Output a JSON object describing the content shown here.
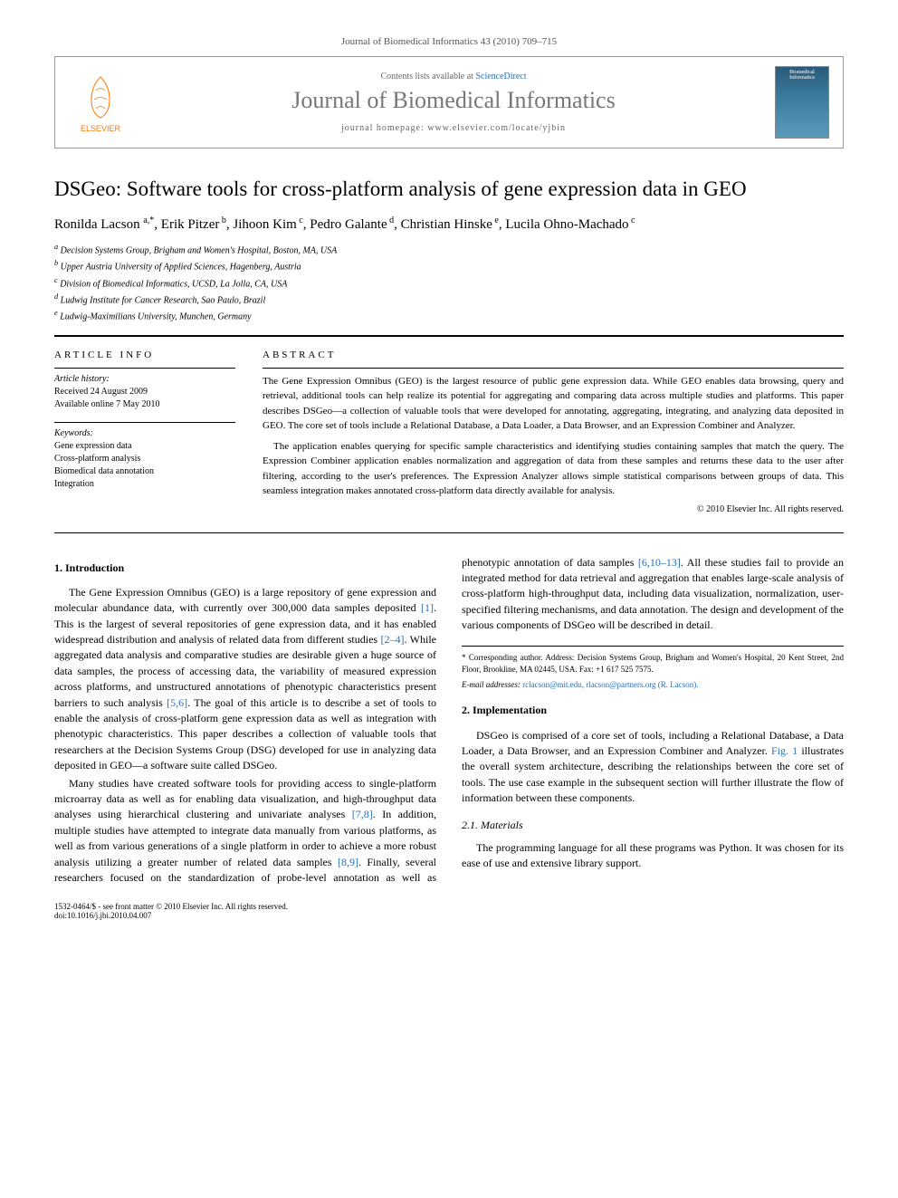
{
  "journal_ref": "Journal of Biomedical Informatics 43 (2010) 709–715",
  "header": {
    "contents_prefix": "Contents lists available at ",
    "contents_link": "ScienceDirect",
    "journal_name": "Journal of Biomedical Informatics",
    "homepage_prefix": "journal homepage: ",
    "homepage_url": "www.elsevier.com/locate/yjbin",
    "publisher": "ELSEVIER",
    "cover_label": "Biomedical Informatics"
  },
  "title": "DSGeo: Software tools for cross-platform analysis of gene expression data in GEO",
  "authors_html": "Ronilda Lacson <sup>a,*</sup>, Erik Pitzer<sup> b</sup>, Jihoon Kim<sup> c</sup>, Pedro Galante<sup> d</sup>, Christian Hinske<sup> e</sup>, Lucila Ohno-Machado<sup> c</sup>",
  "affiliations": [
    "a Decision Systems Group, Brigham and Women's Hospital, Boston, MA, USA",
    "b Upper Austria University of Applied Sciences, Hagenberg, Austria",
    "c Division of Biomedical Informatics, UCSD, La Jolla, CA, USA",
    "d Ludwig Institute for Cancer Research, Sao Paulo, Brazil",
    "e Ludwig-Maximilians University, Munchen, Germany"
  ],
  "article_info": {
    "heading": "ARTICLE INFO",
    "history_label": "Article history:",
    "history": [
      "Received 24 August 2009",
      "Available online 7 May 2010"
    ],
    "keywords_label": "Keywords:",
    "keywords": [
      "Gene expression data",
      "Cross-platform analysis",
      "Biomedical data annotation",
      "Integration"
    ]
  },
  "abstract": {
    "heading": "ABSTRACT",
    "paragraphs": [
      "The Gene Expression Omnibus (GEO) is the largest resource of public gene expression data. While GEO enables data browsing, query and retrieval, additional tools can help realize its potential for aggregating and comparing data across multiple studies and platforms. This paper describes DSGeo—a collection of valuable tools that were developed for annotating, aggregating, integrating, and analyzing data deposited in GEO. The core set of tools include a Relational Database, a Data Loader, a Data Browser, and an Expression Combiner and Analyzer.",
      "The application enables querying for specific sample characteristics and identifying studies containing samples that match the query. The Expression Combiner application enables normalization and aggregation of data from these samples and returns these data to the user after filtering, according to the user's preferences. The Expression Analyzer allows simple statistical comparisons between groups of data. This seamless integration makes annotated cross-platform data directly available for analysis."
    ],
    "copyright": "© 2010 Elsevier Inc. All rights reserved."
  },
  "sections": {
    "intro_heading": "1. Introduction",
    "intro_p1": "The Gene Expression Omnibus (GEO) is a large repository of gene expression and molecular abundance data, with currently over 300,000 data samples deposited [1]. This is the largest of several repositories of gene expression data, and it has enabled widespread distribution and analysis of related data from different studies [2–4]. While aggregated data analysis and comparative studies are desirable given a huge source of data samples, the process of accessing data, the variability of measured expression across platforms, and unstructured annotations of phenotypic characteristics present barriers to such analysis [5,6]. The goal of this article is to describe a set of tools to enable the analysis of cross-platform gene expression data as well as integration with phenotypic characteristics. This paper describes a collection of valuable tools that researchers at the Decision Systems Group (DSG) developed for use in analyzing data deposited in GEO—a software suite called DSGeo.",
    "intro_p2": "Many studies have created software tools for providing access to single-platform microarray data as well as for enabling data visualization, and high-throughput data analyses using hierarchical clustering and univariate analyses [7,8]. In addition, multiple studies have attempted to integrate data manually from various platforms, as well as from various generations of a single platform in order to achieve a more robust analysis utilizing a greater number of related data samples [8,9]. Finally, several researchers focused on the standardization of probe-level annotation as well as phenotypic annotation of data samples [6,10–13]. All these studies fail to provide an integrated method for data retrieval and aggregation that enables large-scale analysis of cross-platform high-throughput data, including data visualization, normalization, user-specified filtering mechanisms, and data annotation. The design and development of the various components of DSGeo will be described in detail.",
    "impl_heading": "2. Implementation",
    "impl_p1": "DSGeo is comprised of a core set of tools, including a Relational Database, a Data Loader, a Data Browser, and an Expression Combiner and Analyzer. Fig. 1 illustrates the overall system architecture, describing the relationships between the core set of tools. The use case example in the subsequent section will further illustrate the flow of information between these components.",
    "materials_heading": "2.1. Materials",
    "materials_p1": "The programming language for all these programs was Python. It was chosen for its ease of use and extensive library support."
  },
  "footer": {
    "corresponding": "* Corresponding author. Address: Decision Systems Group, Brigham and Women's Hospital, 20 Kent Street, 2nd Floor, Brookline, MA 02445, USA. Fax: +1 617 525 7575.",
    "email_label": "E-mail addresses:",
    "emails": "rclacson@mit.edu, rlacson@partners.org (R. Lacson)."
  },
  "bottom": {
    "issn": "1532-0464/$ - see front matter © 2010 Elsevier Inc. All rights reserved.",
    "doi": "doi:10.1016/j.jbi.2010.04.007"
  },
  "colors": {
    "link": "#2a6fb5",
    "publisher": "#ff7a00",
    "journal_gray": "#777777"
  }
}
